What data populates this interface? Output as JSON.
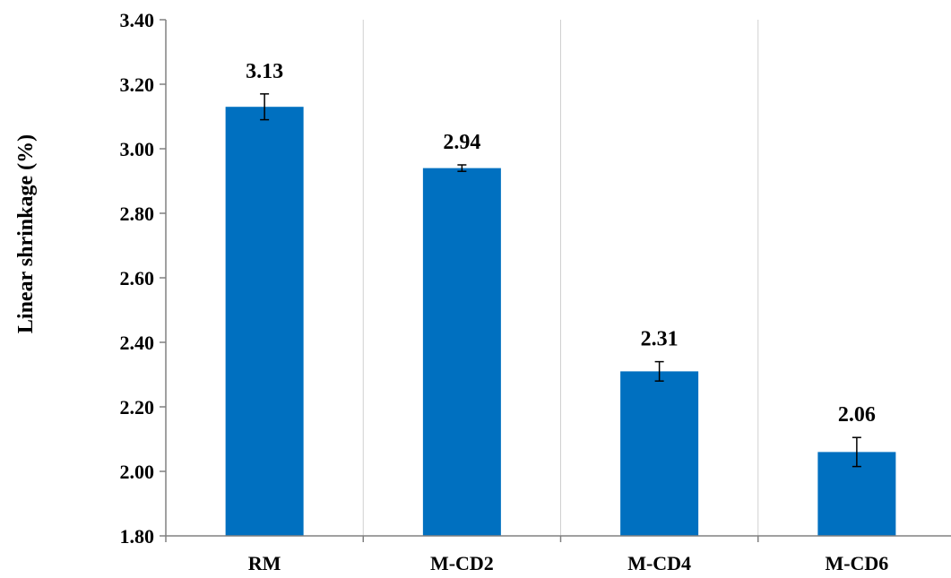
{
  "chart_data": {
    "type": "bar",
    "title": "",
    "xlabel": "",
    "ylabel": "Linear shrinkage (%)",
    "categories": [
      "RM",
      "M-CD2",
      "M-CD4",
      "M-CD6"
    ],
    "values": [
      3.13,
      2.94,
      2.31,
      2.06
    ],
    "value_labels": [
      "3.13",
      "2.94",
      "2.31",
      "2.06"
    ],
    "error": [
      0.04,
      0.01,
      0.03,
      0.045
    ],
    "ylim": [
      1.8,
      3.4
    ],
    "yticks": [
      "1.80",
      "2.00",
      "2.20",
      "2.40",
      "2.60",
      "2.80",
      "3.00",
      "3.20",
      "3.40"
    ],
    "bar_color": "#0070C0",
    "grid": "vertical separators between categories",
    "legend": "none"
  }
}
